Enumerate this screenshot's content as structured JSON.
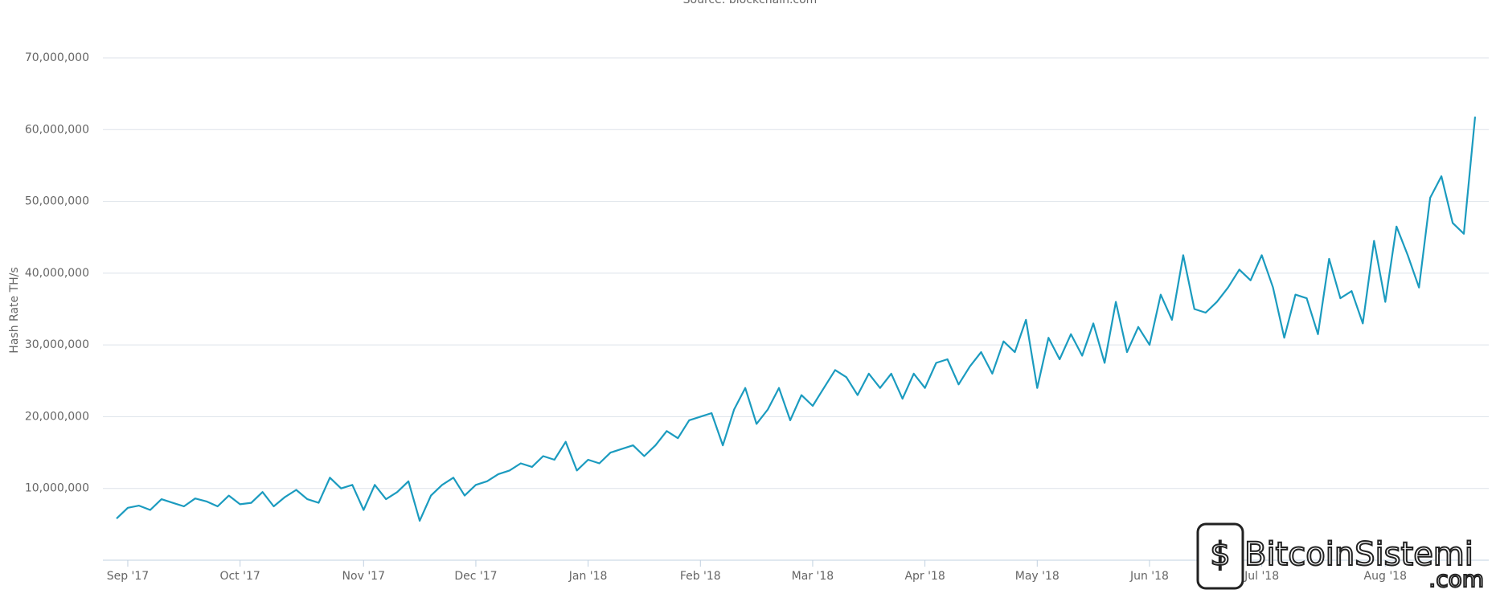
{
  "chart_data": {
    "type": "line",
    "subtitle": "Source: blockchain.com",
    "y_label": "Hash Rate TH/s",
    "watermark": [
      "BitcoinSistemi",
      ".com"
    ],
    "grid": true,
    "categories": [
      null,
      "Sep '17",
      null,
      null,
      null,
      null,
      null,
      null,
      null,
      null,
      null,
      "Oct '17",
      null,
      null,
      null,
      null,
      null,
      null,
      null,
      null,
      null,
      null,
      "Nov '17",
      null,
      null,
      null,
      null,
      null,
      null,
      null,
      null,
      null,
      "Dec '17",
      null,
      null,
      null,
      null,
      null,
      null,
      null,
      null,
      null,
      "Jan '18",
      null,
      null,
      null,
      null,
      null,
      null,
      null,
      null,
      null,
      "Feb '18",
      null,
      null,
      null,
      null,
      null,
      null,
      null,
      null,
      null,
      "Mar '18",
      null,
      null,
      null,
      null,
      null,
      null,
      null,
      null,
      null,
      "Apr '18",
      null,
      null,
      null,
      null,
      null,
      null,
      null,
      null,
      null,
      "May '18",
      null,
      null,
      null,
      null,
      null,
      null,
      null,
      null,
      null,
      "Jun '18",
      null,
      null,
      null,
      null,
      null,
      null,
      null,
      null,
      null,
      "Jul '18",
      null,
      null,
      null,
      null,
      null,
      null,
      null,
      null,
      null,
      null,
      "Aug '18",
      null,
      null,
      null,
      null,
      null,
      null,
      null,
      null
    ],
    "series": [
      {
        "color": "#1b9bbf",
        "values": [
          5800000,
          7300000,
          7600000,
          7000000,
          8500000,
          8000000,
          7500000,
          8600000,
          8200000,
          7500000,
          9000000,
          7800000,
          8000000,
          9500000,
          7500000,
          8800000,
          9800000,
          8500000,
          8000000,
          11500000,
          10000000,
          10500000,
          7000000,
          10500000,
          8500000,
          9500000,
          11000000,
          5500000,
          9000000,
          10500000,
          11500000,
          9000000,
          10500000,
          11000000,
          12000000,
          12500000,
          13500000,
          13000000,
          14500000,
          14000000,
          16500000,
          12500000,
          14000000,
          13500000,
          15000000,
          15500000,
          16000000,
          14500000,
          16000000,
          18000000,
          17000000,
          19500000,
          20000000,
          20500000,
          16000000,
          21000000,
          24000000,
          19000000,
          21000000,
          24000000,
          19500000,
          23000000,
          21500000,
          24000000,
          26500000,
          25500000,
          23000000,
          26000000,
          24000000,
          26000000,
          22500000,
          26000000,
          24000000,
          27500000,
          28000000,
          24500000,
          27000000,
          29000000,
          26000000,
          30500000,
          29000000,
          33500000,
          24000000,
          31000000,
          28000000,
          31500000,
          28500000,
          33000000,
          27500000,
          36000000,
          29000000,
          32500000,
          30000000,
          37000000,
          33500000,
          42500000,
          35000000,
          34500000,
          36000000,
          38000000,
          40500000,
          39000000,
          42500000,
          38000000,
          31000000,
          37000000,
          36500000,
          31500000,
          42000000,
          36500000,
          37500000,
          33000000,
          44500000,
          36000000,
          46500000,
          42500000,
          38000000,
          50500000,
          53500000,
          47000000,
          45500000,
          61800000
        ]
      }
    ],
    "ylim": [
      0,
      70000000
    ],
    "yticks": [
      {
        "value": 10000000,
        "label": "10,000,000"
      },
      {
        "value": 20000000,
        "label": "20,000,000"
      },
      {
        "value": 30000000,
        "label": "30,000,000"
      },
      {
        "value": 40000000,
        "label": "40,000,000"
      },
      {
        "value": 50000000,
        "label": "50,000,000"
      },
      {
        "value": 60000000,
        "label": "60,000,000"
      },
      {
        "value": 70000000,
        "label": "70,000,000"
      }
    ]
  }
}
